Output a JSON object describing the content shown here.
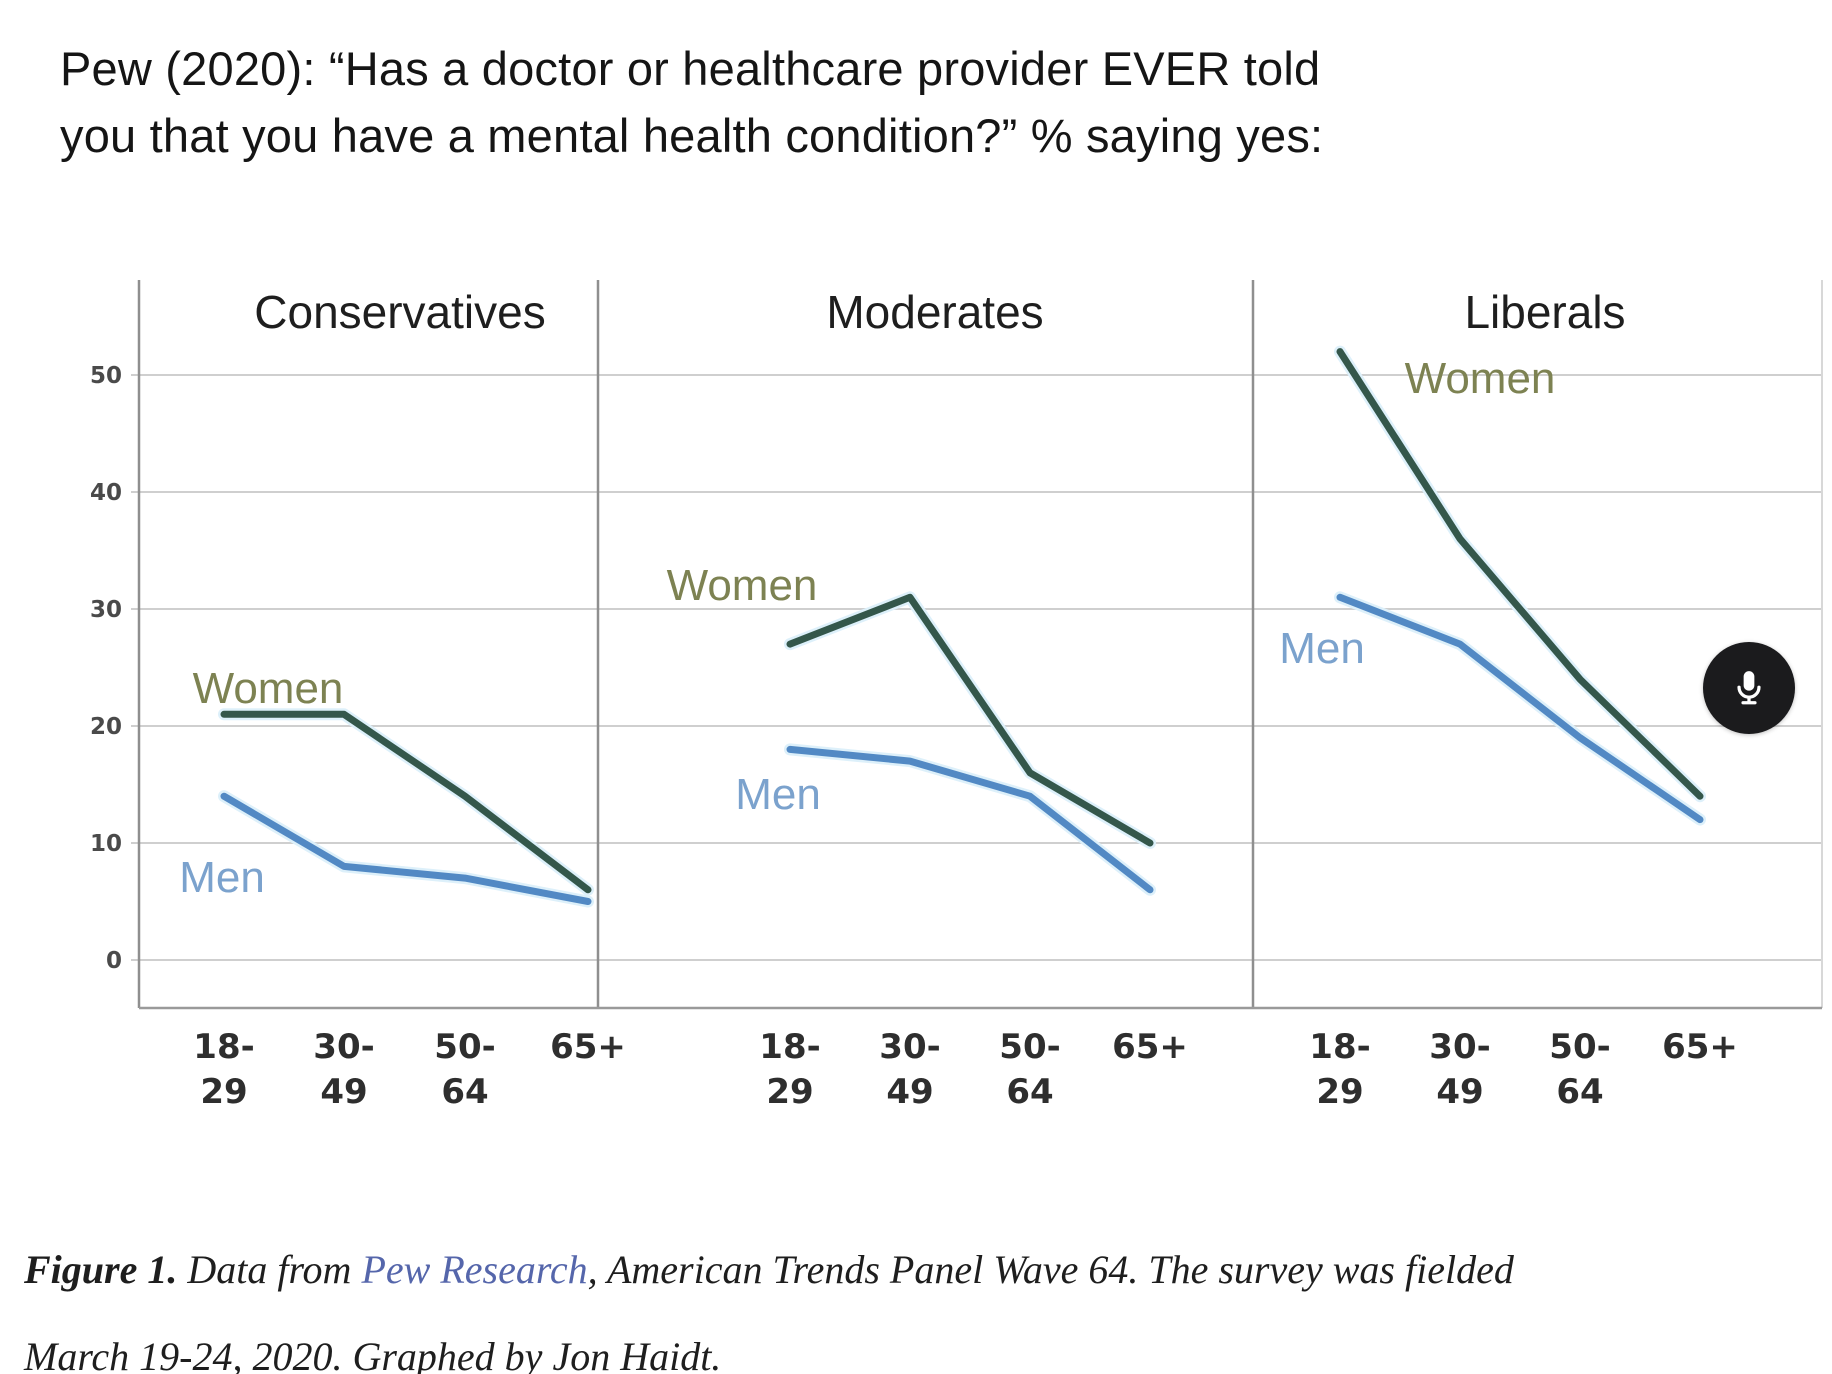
{
  "title": {
    "line1": "Pew (2020): “Has a doctor or healthcare provider EVER told",
    "line2": "you that you have a mental health condition?” % saying yes:"
  },
  "chart_data": {
    "type": "line",
    "categories": [
      "18-29",
      "30-49",
      "50-64",
      "65+"
    ],
    "category_tick_lines": [
      [
        "18-",
        "29"
      ],
      [
        "30-",
        "49"
      ],
      [
        "50-",
        "64"
      ],
      [
        "65+",
        ""
      ]
    ],
    "yticks": [
      0,
      10,
      20,
      30,
      40,
      50
    ],
    "ylim": [
      0,
      57
    ],
    "grid": true,
    "legend_position": "inline-labels",
    "panels": [
      {
        "title": "Conservatives",
        "series": [
          {
            "name": "Women",
            "values": [
              21,
              21,
              14,
              6
            ]
          },
          {
            "name": "Men",
            "values": [
              14,
              8,
              7,
              5
            ]
          }
        ]
      },
      {
        "title": "Moderates",
        "series": [
          {
            "name": "Women",
            "values": [
              27,
              31,
              16,
              10
            ]
          },
          {
            "name": "Men",
            "values": [
              18,
              17,
              14,
              6
            ]
          }
        ]
      },
      {
        "title": "Liberals",
        "series": [
          {
            "name": "Women",
            "values": [
              52,
              36,
              24,
              14
            ]
          },
          {
            "name": "Men",
            "values": [
              31,
              27,
              19,
              12
            ]
          }
        ]
      }
    ],
    "colors": {
      "women_line": "#34574b",
      "men_line": "#5289c4",
      "line_halo": "#ddf0fa",
      "women_label": "#7d8252",
      "men_label": "#7ba2cd",
      "grid": "#cfcfcf",
      "frame": "#8f8f8f",
      "tick_text": "#4a4a4a",
      "panel_title_text": "#1e1e1e",
      "xlabel_text": "#2e2e2e"
    }
  },
  "mic_button": {
    "icon": "microphone-icon"
  },
  "caption": {
    "figure_label": "Figure 1.",
    "pre_link": "  Data from ",
    "link_text": "Pew Research",
    "post_link_line1": ", American Trends Panel Wave 64. The survey was fielded",
    "post_link_line2": "March 19-24, 2020. Graphed by Jon Haidt."
  }
}
